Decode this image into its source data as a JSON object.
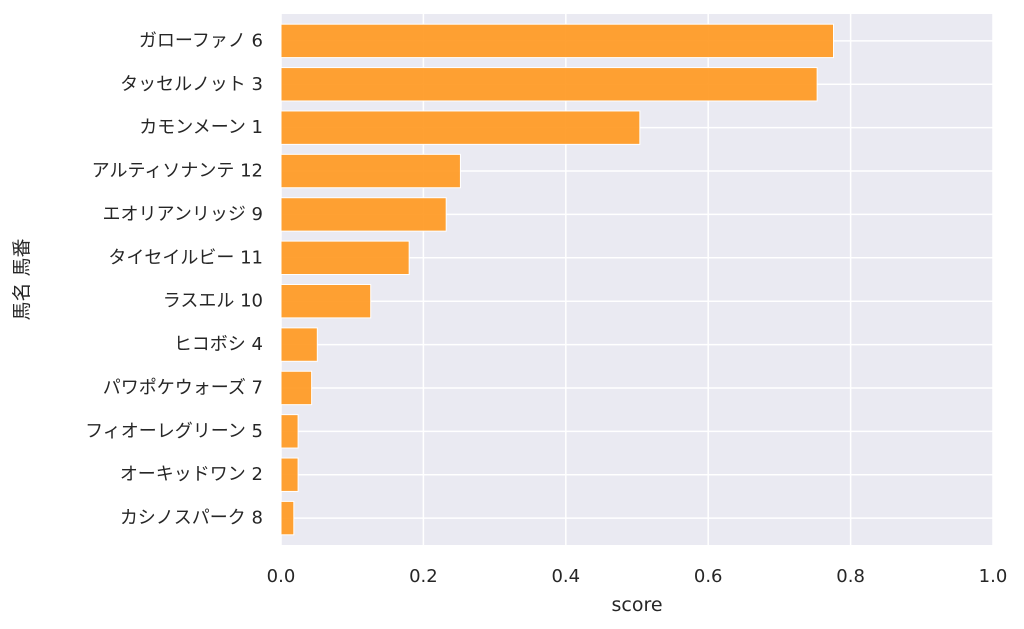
{
  "chart_data": {
    "type": "bar",
    "orientation": "horizontal",
    "xlabel": "score",
    "ylabel": "馬名 馬番",
    "xlim": [
      0.0,
      1.0
    ],
    "xticks": [
      "0.0",
      "0.2",
      "0.4",
      "0.6",
      "0.8",
      "1.0"
    ],
    "grid": true,
    "bar_color": "#ff9922",
    "background_color": "#eaeaf2",
    "categories": [
      "ガローファノ 6",
      "タッセルノット 3",
      "カモンメーン 1",
      "アルティソナンテ 12",
      "エオリアンリッジ 9",
      "タイセイルビー 11",
      "ラスエル 10",
      "ヒコボシ 4",
      "パワポケウォーズ 7",
      "フィオーレグリーン 5",
      "オーキッドワン 2",
      "カシノスパーク 8"
    ],
    "values": [
      0.776,
      0.753,
      0.504,
      0.252,
      0.232,
      0.18,
      0.126,
      0.051,
      0.043,
      0.024,
      0.024,
      0.018
    ]
  }
}
